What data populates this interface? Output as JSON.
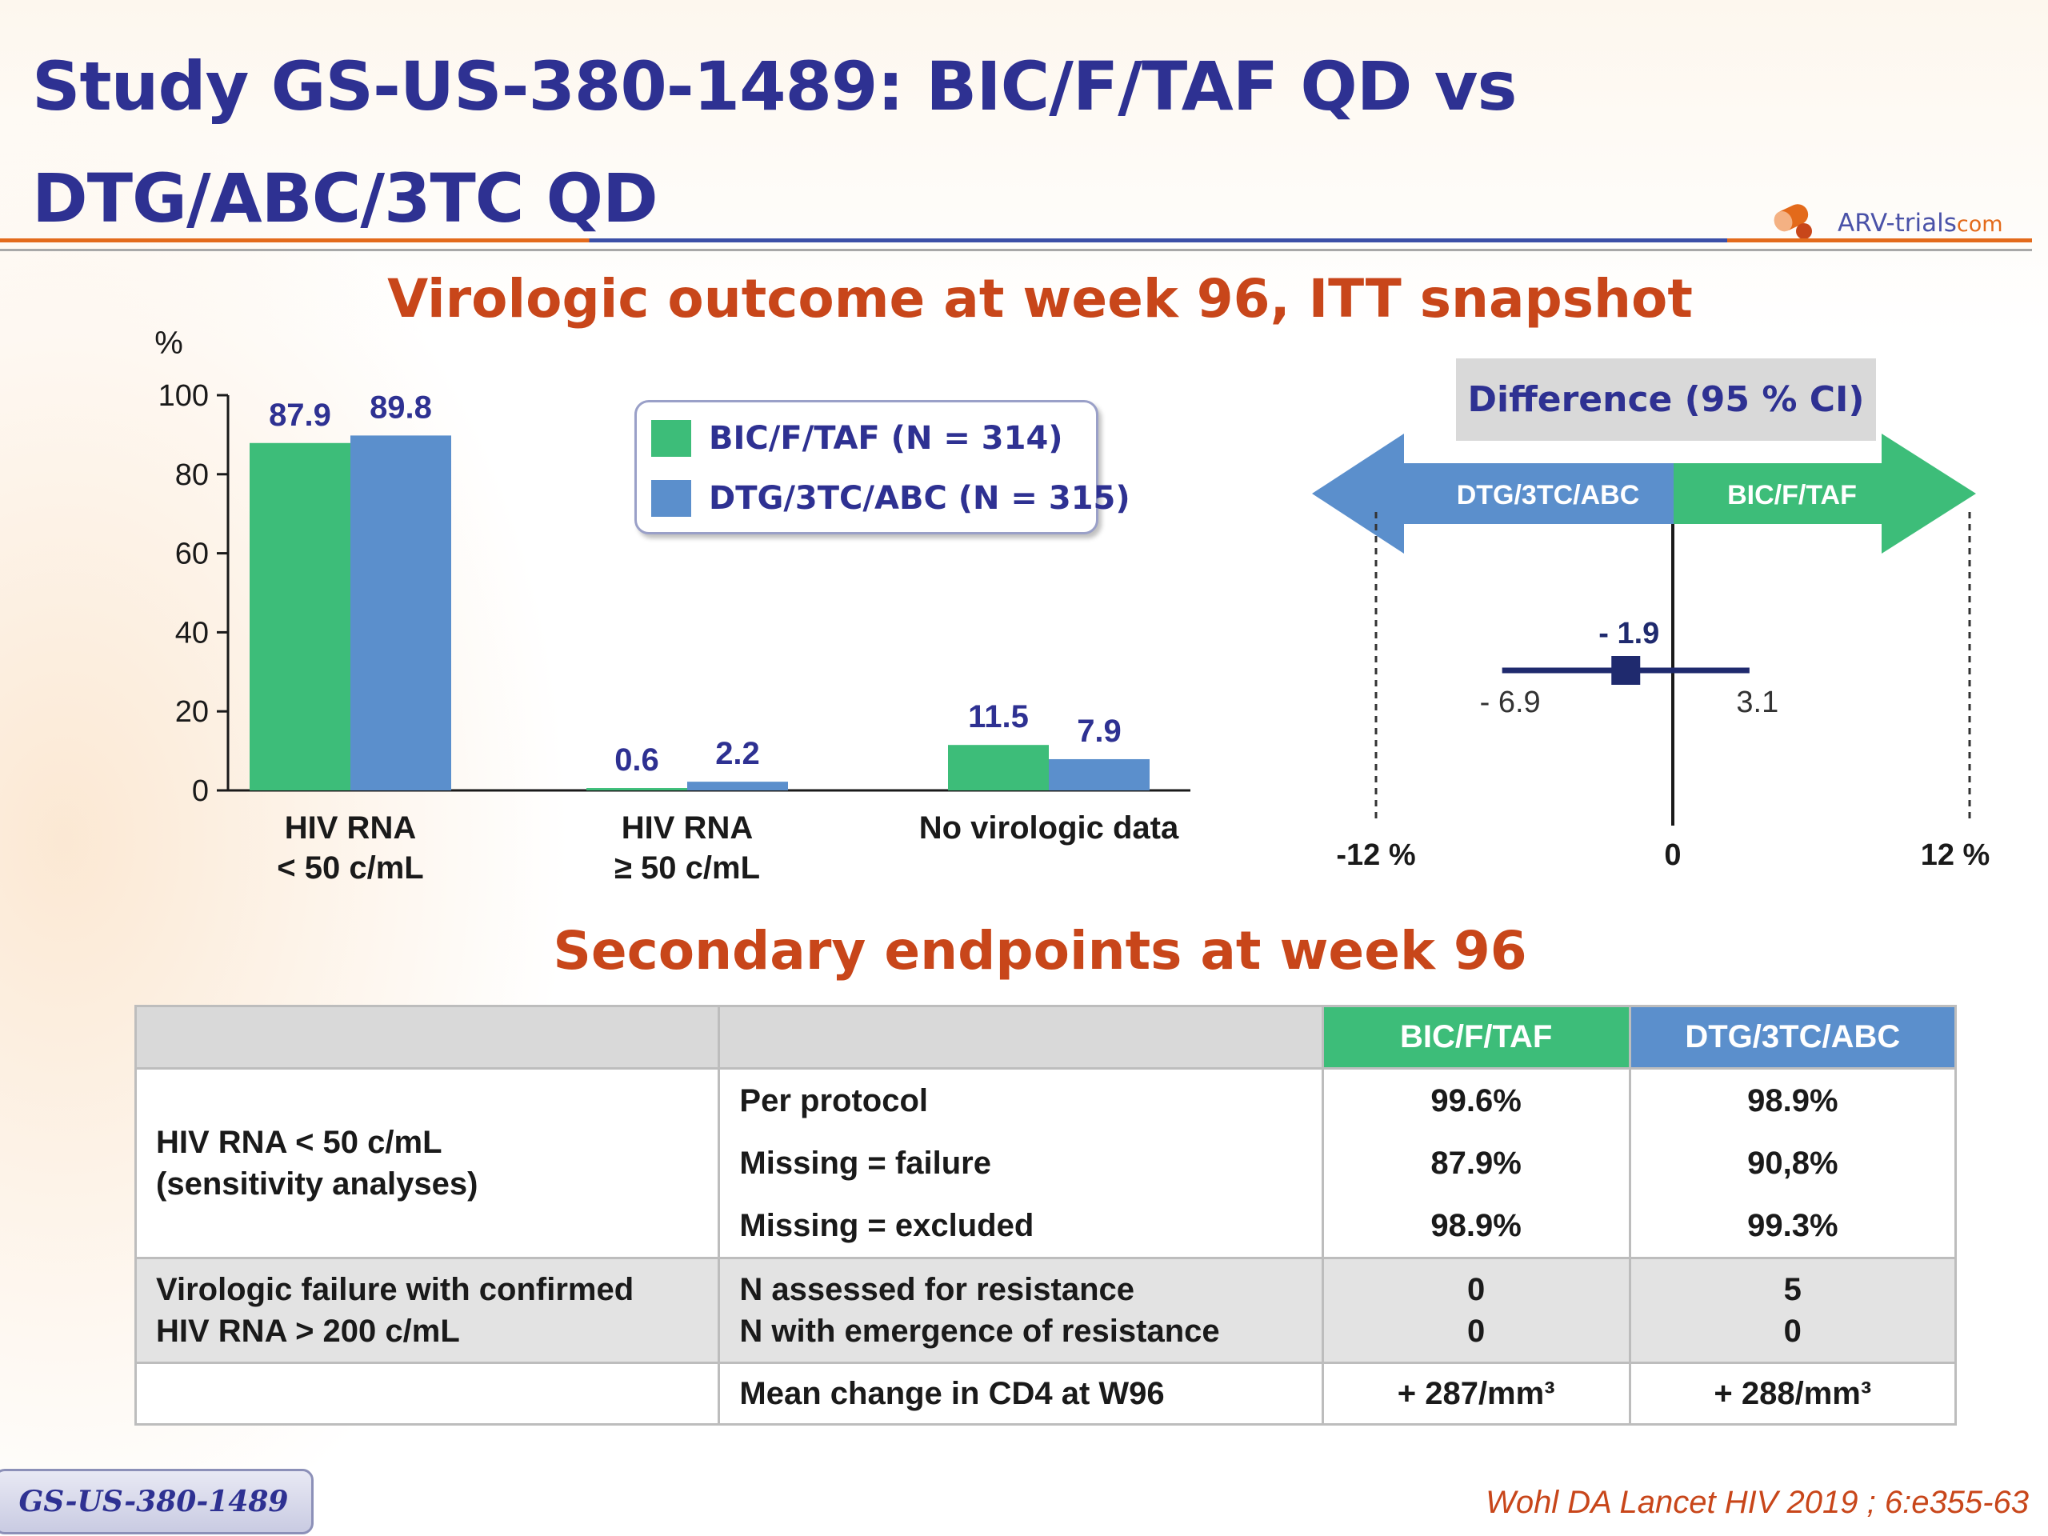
{
  "title": {
    "line1": "Study GS-US-380-1489: BIC/F/TAF QD vs",
    "line2": "DTG/ABC/3TC QD"
  },
  "logo": {
    "text": "ARV-trials",
    "suffix": "com"
  },
  "section1_title": "Virologic outcome at week 96, ITT snapshot",
  "section2_title": "Secondary endpoints at week 96",
  "colors": {
    "bic": "#3dbd79",
    "dtg": "#5b8fcc",
    "title": "#2e3192",
    "accent": "#c8461a"
  },
  "chart_data": [
    {
      "type": "bar",
      "ylabel": "%",
      "ylim": [
        0,
        100
      ],
      "yticks": [
        0,
        20,
        40,
        60,
        80,
        100
      ],
      "categories": [
        [
          "HIV RNA",
          "< 50 c/mL"
        ],
        [
          "HIV RNA",
          "≥ 50 c/mL"
        ],
        [
          "No virologic data"
        ]
      ],
      "series": [
        {
          "name": "BIC/F/TAF (N = 314)",
          "color": "#3dbd79",
          "values": [
            87.9,
            0.6,
            11.5
          ]
        },
        {
          "name": "DTG/3TC/ABC (N = 315)",
          "color": "#5b8fcc",
          "values": [
            89.8,
            2.2,
            7.9
          ]
        }
      ],
      "value_labels": [
        [
          "87.9",
          "0.6",
          "11.5"
        ],
        [
          "89.8",
          "2.2",
          "7.9"
        ]
      ],
      "legend": "top-right"
    },
    {
      "type": "scatter",
      "title": "Difference (95 % CI)",
      "xlim": [
        -12,
        12
      ],
      "xticks": [
        "-12 %",
        "0",
        "12 %"
      ],
      "arrow_left_label": "DTG/3TC/ABC",
      "arrow_right_label": "BIC/F/TAF",
      "estimate": -1.9,
      "ci": [
        -6.9,
        3.1
      ],
      "estimate_label": "- 1.9",
      "ci_low_label": "- 6.9",
      "ci_high_label": "3.1"
    }
  ],
  "table": {
    "col_bic": "BIC/F/TAF",
    "col_dtg": "DTG/3TC/ABC",
    "group1": {
      "label1": "HIV RNA < 50 c/mL",
      "label2": "(sensitivity analyses)",
      "rows": [
        {
          "metric": "Per protocol",
          "bic": "99.6%",
          "dtg": "98.9%"
        },
        {
          "metric": "Missing = failure",
          "bic": "87.9%",
          "dtg": "90,8%"
        },
        {
          "metric": "Missing = excluded",
          "bic": "98.9%",
          "dtg": "99.3%"
        }
      ]
    },
    "group2": {
      "label1": "Virologic failure with confirmed",
      "label2": "HIV RNA > 200 c/mL",
      "rows": [
        {
          "metric": "N assessed for resistance",
          "bic": "0",
          "dtg": "5"
        },
        {
          "metric": "N with emergence of resistance",
          "bic": "0",
          "dtg": "0"
        }
      ]
    },
    "cd4": {
      "metric": "Mean change in CD4 at W96",
      "bic": "+ 287/mm³",
      "dtg": "+ 288/mm³"
    }
  },
  "footer": {
    "study_tag": "GS-US-380-1489",
    "reference": "Wohl DA Lancet HIV 2019 ; 6:e355-63"
  }
}
